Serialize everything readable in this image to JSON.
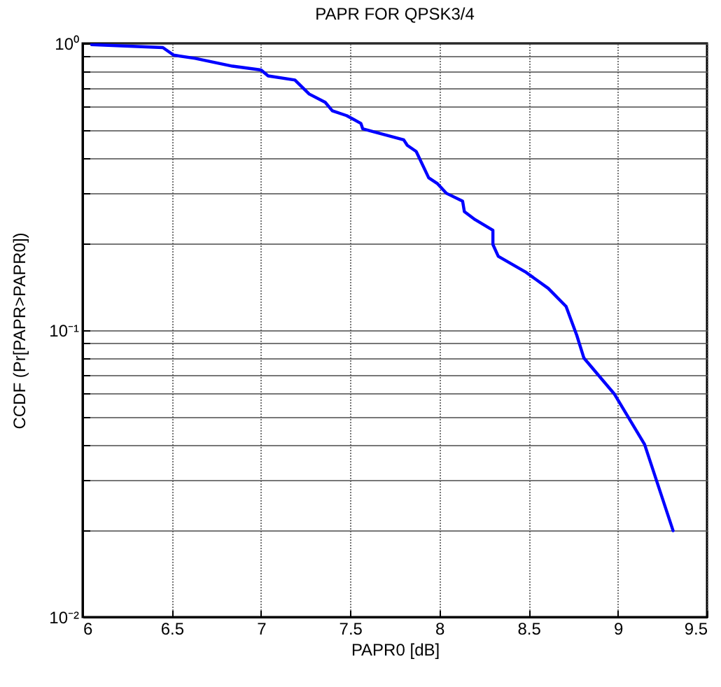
{
  "chart_data": {
    "type": "line",
    "title": "PAPR FOR QPSK3/4",
    "xlabel": "PAPR0 [dB]",
    "ylabel": "CCDF  (Pr[PAPR>PAPR0])",
    "log": "y",
    "grid": true,
    "marker": "none",
    "line_style": "solid",
    "xlim": [
      6,
      9.5
    ],
    "xticks": [
      6,
      6.5,
      7,
      7.5,
      8,
      8.5,
      9,
      9.5
    ],
    "ylim": [
      0.01,
      1
    ],
    "yticks": [
      {
        "value": 0.01,
        "label": "10⁻²"
      },
      {
        "value": 0.02,
        "label": null
      },
      {
        "value": 0.03,
        "label": null
      },
      {
        "value": 0.04,
        "label": null
      },
      {
        "value": 0.05,
        "label": null
      },
      {
        "value": 0.06,
        "label": null
      },
      {
        "value": 0.07,
        "label": null
      },
      {
        "value": 0.08,
        "label": null
      },
      {
        "value": 0.09,
        "label": null
      },
      {
        "value": 0.1,
        "label": "10⁻¹"
      },
      {
        "value": 0.2,
        "label": null
      },
      {
        "value": 0.3,
        "label": null
      },
      {
        "value": 0.4,
        "label": null
      },
      {
        "value": 0.5,
        "label": null
      },
      {
        "value": 0.6,
        "label": null
      },
      {
        "value": 0.7,
        "label": null
      },
      {
        "value": 0.8,
        "label": null
      },
      {
        "value": 0.9,
        "label": null
      },
      {
        "value": 1,
        "label": "10⁰"
      }
    ],
    "x": [
      6.05,
      6.45,
      6.51,
      6.63,
      6.84,
      7.0,
      7.04,
      7.19,
      7.27,
      7.36,
      7.4,
      7.48,
      7.56,
      7.57,
      7.8,
      7.82,
      7.87,
      7.94,
      7.99,
      8.04,
      8.13,
      8.14,
      8.2,
      8.3,
      8.3,
      8.33,
      8.48,
      8.61,
      8.71,
      8.77,
      8.81,
      8.98,
      9.15,
      9.31
    ],
    "series": [
      {
        "color": "#0000ff",
        "values": [
          0.99,
          0.967,
          0.91,
          0.887,
          0.833,
          0.808,
          0.77,
          0.745,
          0.666,
          0.623,
          0.582,
          0.56,
          0.526,
          0.504,
          0.461,
          0.441,
          0.42,
          0.34,
          0.324,
          0.3,
          0.282,
          0.259,
          0.243,
          0.223,
          0.199,
          0.181,
          0.16,
          0.14,
          0.121,
          0.096,
          0.08,
          0.06,
          0.04,
          0.02
        ]
      }
    ]
  }
}
